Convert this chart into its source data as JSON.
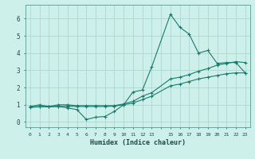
{
  "title": "",
  "xlabel": "Humidex (Indice chaleur)",
  "background_color": "#cef0ea",
  "grid_color": "#aed8d2",
  "line_color": "#1a7a6e",
  "xlim": [
    -0.5,
    23.5
  ],
  "ylim": [
    -0.3,
    6.8
  ],
  "ytick_values": [
    0,
    1,
    2,
    3,
    4,
    5,
    6
  ],
  "line1_x": [
    0,
    1,
    2,
    3,
    4,
    5,
    6,
    7,
    8,
    9,
    10,
    11,
    12,
    13,
    15,
    16,
    17,
    18,
    19,
    20,
    21,
    22,
    23
  ],
  "line1_y": [
    0.9,
    1.0,
    0.9,
    0.9,
    0.82,
    0.72,
    0.15,
    0.28,
    0.32,
    0.62,
    1.0,
    1.75,
    1.85,
    3.2,
    6.25,
    5.5,
    5.1,
    4.0,
    4.15,
    3.4,
    3.45,
    3.45,
    2.85
  ],
  "line2_x": [
    0,
    1,
    2,
    3,
    4,
    5,
    6,
    7,
    8,
    9,
    10,
    11,
    12,
    13,
    15,
    16,
    17,
    18,
    19,
    20,
    21,
    22,
    23
  ],
  "line2_y": [
    0.88,
    0.9,
    0.9,
    1.0,
    1.0,
    0.95,
    0.95,
    0.95,
    0.95,
    0.95,
    1.05,
    1.2,
    1.5,
    1.7,
    2.5,
    2.6,
    2.75,
    2.95,
    3.1,
    3.3,
    3.4,
    3.5,
    3.45
  ],
  "line3_x": [
    0,
    1,
    2,
    3,
    4,
    5,
    6,
    7,
    8,
    9,
    10,
    11,
    12,
    13,
    15,
    16,
    17,
    18,
    19,
    20,
    21,
    22,
    23
  ],
  "line3_y": [
    0.85,
    0.88,
    0.88,
    0.9,
    0.92,
    0.9,
    0.9,
    0.9,
    0.9,
    0.92,
    1.0,
    1.1,
    1.3,
    1.5,
    2.1,
    2.2,
    2.35,
    2.5,
    2.6,
    2.7,
    2.8,
    2.85,
    2.85
  ],
  "xtick_labels": [
    "0",
    "1",
    "2",
    "3",
    "4",
    "5",
    "6",
    "7",
    "8",
    "9",
    "10",
    "11",
    "12",
    "13",
    "",
    "15",
    "16",
    "17",
    "18",
    "19",
    "20",
    "21",
    "22",
    "23"
  ]
}
